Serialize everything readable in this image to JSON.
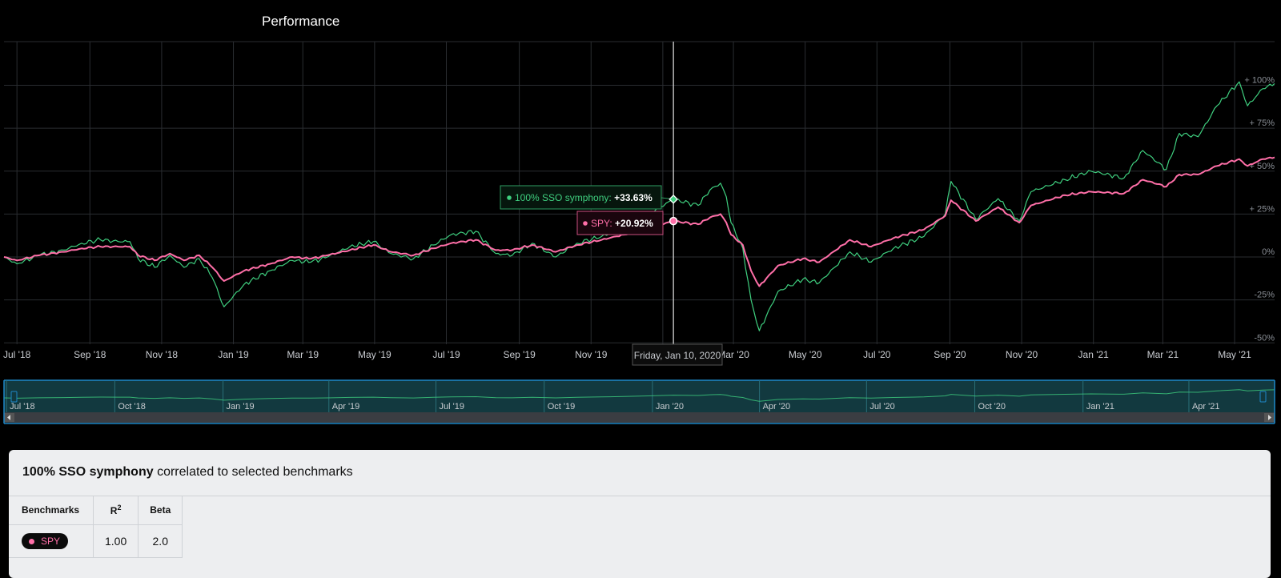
{
  "page": {
    "title": "Performance"
  },
  "tooltip": {
    "date": "Friday, Jan 10, 2020",
    "series1_label": "100% SSO symphony: ",
    "series1_value": "+33.63%",
    "series2_label": "SPY: ",
    "series2_value": "+20.92%"
  },
  "navigator": {
    "labels": [
      "Jul '18",
      "Oct '18",
      "Jan '19",
      "Apr '19",
      "Jul '19",
      "Oct '19",
      "Jan '20",
      "Apr '20",
      "Jul '20",
      "Oct '20",
      "Jan '21",
      "Apr '21"
    ]
  },
  "benchmarks_panel": {
    "title_bold": "100% SSO symphony",
    "title_rest": " correlated to selected benchmarks",
    "columns": {
      "benchmarks": "Benchmarks",
      "r": "R",
      "r_sup": "2",
      "beta": "Beta"
    },
    "rows": [
      {
        "name": "SPY",
        "r2": "1.00",
        "beta": "2.0"
      }
    ]
  },
  "colors": {
    "sso": "#3fcf7f",
    "spy": "#ff6fa8",
    "background": "#000000",
    "grid": "#2a2d31",
    "navigator": "#12393f",
    "navigator_border": "#1e88c8"
  },
  "chart_data": {
    "type": "line",
    "x_tick_labels": [
      "Jul '18",
      "Sep '18",
      "Nov '18",
      "Jan '19",
      "Mar '19",
      "May '19",
      "Jul '19",
      "Sep '19",
      "Nov '19",
      "Jan '20",
      "Mar '20",
      "May '20",
      "Jul '20",
      "Sep '20",
      "Nov '20",
      "Jan '21",
      "Mar '21",
      "May '21"
    ],
    "y_tick_labels": [
      "+ 100%",
      "+ 75%",
      "+ 50%",
      "+ 25%",
      "0%",
      "-25%",
      "-50%"
    ],
    "ylim": [
      -50,
      100
    ],
    "xlim": [
      "2018-06-20",
      "2021-06-04"
    ],
    "grid": true,
    "series": [
      {
        "name": "100% SSO symphony",
        "color": "#3fcf7f",
        "points": [
          [
            "2018-06-20",
            0
          ],
          [
            "2018-07-01",
            -4
          ],
          [
            "2018-07-20",
            1
          ],
          [
            "2018-08-10",
            4
          ],
          [
            "2018-08-25",
            8
          ],
          [
            "2018-09-10",
            10
          ],
          [
            "2018-09-25",
            9
          ],
          [
            "2018-10-05",
            9
          ],
          [
            "2018-10-12",
            -1
          ],
          [
            "2018-10-26",
            -6
          ],
          [
            "2018-11-08",
            1
          ],
          [
            "2018-11-20",
            -6
          ],
          [
            "2018-12-03",
            -1
          ],
          [
            "2018-12-14",
            -12
          ],
          [
            "2018-12-24",
            -29
          ],
          [
            "2019-01-10",
            -16
          ],
          [
            "2019-02-01",
            -8
          ],
          [
            "2019-02-20",
            -2
          ],
          [
            "2019-03-08",
            -3
          ],
          [
            "2019-03-22",
            0
          ],
          [
            "2019-04-10",
            6
          ],
          [
            "2019-04-30",
            9
          ],
          [
            "2019-05-15",
            2
          ],
          [
            "2019-06-03",
            -1
          ],
          [
            "2019-06-20",
            7
          ],
          [
            "2019-07-05",
            13
          ],
          [
            "2019-07-26",
            15
          ],
          [
            "2019-08-12",
            2
          ],
          [
            "2019-08-26",
            1
          ],
          [
            "2019-09-12",
            8
          ],
          [
            "2019-10-02",
            0
          ],
          [
            "2019-10-20",
            8
          ],
          [
            "2019-11-10",
            12
          ],
          [
            "2019-11-29",
            17
          ],
          [
            "2019-12-20",
            25
          ],
          [
            "2020-01-10",
            33.63
          ],
          [
            "2020-01-31",
            30
          ],
          [
            "2020-02-10",
            39
          ],
          [
            "2020-02-19",
            43
          ],
          [
            "2020-02-24",
            35
          ],
          [
            "2020-02-28",
            20
          ],
          [
            "2020-03-09",
            5
          ],
          [
            "2020-03-16",
            -25
          ],
          [
            "2020-03-23",
            -43
          ],
          [
            "2020-04-08",
            -20
          ],
          [
            "2020-04-29",
            -13
          ],
          [
            "2020-05-13",
            -15
          ],
          [
            "2020-06-08",
            3
          ],
          [
            "2020-06-26",
            -3
          ],
          [
            "2020-07-15",
            5
          ],
          [
            "2020-08-10",
            12
          ],
          [
            "2020-08-28",
            25
          ],
          [
            "2020-09-02",
            44
          ],
          [
            "2020-09-23",
            22
          ],
          [
            "2020-10-12",
            34
          ],
          [
            "2020-10-30",
            21
          ],
          [
            "2020-11-09",
            38
          ],
          [
            "2020-12-08",
            45
          ],
          [
            "2020-12-30",
            50
          ],
          [
            "2021-01-27",
            46
          ],
          [
            "2021-02-12",
            62
          ],
          [
            "2021-03-04",
            51
          ],
          [
            "2021-03-15",
            72
          ],
          [
            "2021-03-31",
            70
          ],
          [
            "2021-04-16",
            88
          ],
          [
            "2021-05-05",
            102
          ],
          [
            "2021-05-12",
            88
          ],
          [
            "2021-05-25",
            98
          ],
          [
            "2021-06-04",
            101
          ]
        ]
      },
      {
        "name": "SPY",
        "color": "#ff6fa8",
        "points": [
          [
            "2018-06-20",
            0
          ],
          [
            "2018-07-01",
            -2
          ],
          [
            "2018-07-20",
            1
          ],
          [
            "2018-08-10",
            3
          ],
          [
            "2018-08-25",
            5
          ],
          [
            "2018-09-10",
            6
          ],
          [
            "2018-09-25",
            6
          ],
          [
            "2018-10-05",
            6
          ],
          [
            "2018-10-12",
            1
          ],
          [
            "2018-10-26",
            -2
          ],
          [
            "2018-11-08",
            2
          ],
          [
            "2018-11-20",
            -2
          ],
          [
            "2018-12-03",
            1
          ],
          [
            "2018-12-14",
            -6
          ],
          [
            "2018-12-24",
            -14
          ],
          [
            "2019-01-10",
            -8
          ],
          [
            "2019-02-01",
            -4
          ],
          [
            "2019-02-20",
            0
          ],
          [
            "2019-03-08",
            -1
          ],
          [
            "2019-03-22",
            1
          ],
          [
            "2019-04-10",
            4
          ],
          [
            "2019-04-30",
            7
          ],
          [
            "2019-05-15",
            3
          ],
          [
            "2019-06-03",
            1
          ],
          [
            "2019-06-20",
            5
          ],
          [
            "2019-07-05",
            8
          ],
          [
            "2019-07-26",
            10
          ],
          [
            "2019-08-12",
            4
          ],
          [
            "2019-08-26",
            4
          ],
          [
            "2019-09-12",
            7
          ],
          [
            "2019-10-02",
            3
          ],
          [
            "2019-10-20",
            7
          ],
          [
            "2019-11-10",
            10
          ],
          [
            "2019-11-29",
            13
          ],
          [
            "2019-12-20",
            17
          ],
          [
            "2020-01-10",
            20.92
          ],
          [
            "2020-01-31",
            19
          ],
          [
            "2020-02-10",
            23
          ],
          [
            "2020-02-19",
            25
          ],
          [
            "2020-02-24",
            20
          ],
          [
            "2020-02-28",
            13
          ],
          [
            "2020-03-09",
            7
          ],
          [
            "2020-03-16",
            -8
          ],
          [
            "2020-03-23",
            -17
          ],
          [
            "2020-04-08",
            -5
          ],
          [
            "2020-04-29",
            -1
          ],
          [
            "2020-05-13",
            -3
          ],
          [
            "2020-06-08",
            10
          ],
          [
            "2020-06-26",
            6
          ],
          [
            "2020-07-15",
            11
          ],
          [
            "2020-08-10",
            16
          ],
          [
            "2020-08-28",
            24
          ],
          [
            "2020-09-02",
            33
          ],
          [
            "2020-09-23",
            21
          ],
          [
            "2020-10-12",
            29
          ],
          [
            "2020-10-30",
            20
          ],
          [
            "2020-11-09",
            30
          ],
          [
            "2020-12-08",
            36
          ],
          [
            "2020-12-30",
            38
          ],
          [
            "2021-01-27",
            37
          ],
          [
            "2021-02-12",
            45
          ],
          [
            "2021-03-04",
            41
          ],
          [
            "2021-03-15",
            48
          ],
          [
            "2021-03-31",
            48
          ],
          [
            "2021-04-16",
            53
          ],
          [
            "2021-05-05",
            57
          ],
          [
            "2021-05-12",
            53
          ],
          [
            "2021-05-25",
            57
          ],
          [
            "2021-06-04",
            58
          ]
        ]
      }
    ]
  }
}
